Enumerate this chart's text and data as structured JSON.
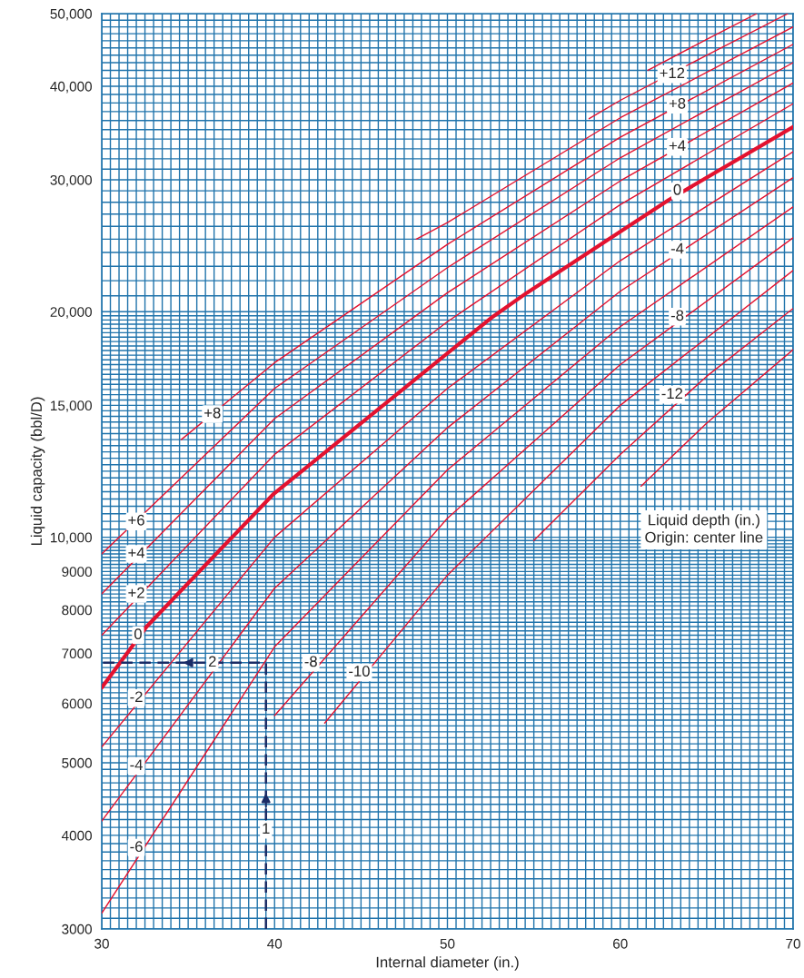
{
  "chart_data": {
    "type": "line",
    "xlabel": "Internal diameter (in.)",
    "ylabel": "Liquid capacity (bbl/D)",
    "log": "y",
    "grid": true,
    "xlim": [
      30,
      70
    ],
    "ylim": [
      3000,
      50000
    ],
    "xticks": [
      30,
      40,
      50,
      60,
      70
    ],
    "yticks": [
      3000,
      4000,
      5000,
      6000,
      7000,
      8000,
      9000,
      {
        "value": 10000,
        "label": "10,000"
      },
      {
        "value": 15000,
        "label": "15,000"
      },
      {
        "value": 20000,
        "label": "20,000"
      },
      {
        "value": 30000,
        "label": "30,000"
      },
      {
        "value": 40000,
        "label": "40,000"
      },
      {
        "value": 50000,
        "label": "50,000"
      }
    ],
    "series": [
      {
        "color": "#e3122f",
        "x": [
          30,
          32.6,
          39.9,
          52.5,
          54.6,
          62.8,
          70
        ],
        "values": [
          6300,
          7600,
          11400,
          19600,
          21200,
          28200,
          35300
        ]
      },
      {
        "color": "#e3122f",
        "x": [
          30,
          40,
          50,
          60,
          70
        ],
        "values": [
          7400,
          12900,
          19400,
          27800,
          37900
        ]
      },
      {
        "color": "#e3122f",
        "x": [
          30,
          40,
          50,
          60,
          70
        ],
        "values": [
          8400,
          14400,
          21200,
          29900,
          40400
        ]
      },
      {
        "color": "#e3122f",
        "x": [
          30,
          40,
          50,
          60,
          70
        ],
        "values": [
          9500,
          15800,
          22900,
          32100,
          43000
        ]
      },
      {
        "color": "#e3122f",
        "x": [
          34.6,
          40,
          50,
          60,
          70
        ],
        "values": [
          13500,
          17100,
          24600,
          34200,
          45500
        ]
      },
      {
        "color": "#e3122f",
        "x": [
          48.2,
          50,
          60,
          70
        ],
        "values": [
          25000,
          26300,
          36300,
          48000
        ]
      },
      {
        "color": "#e3122f",
        "x": [
          58.2,
          60,
          65,
          69.7
        ],
        "values": [
          36200,
          38300,
          44000,
          50000
        ]
      },
      {
        "color": "#e3122f",
        "x": [
          61.6,
          65,
          67.9
        ],
        "values": [
          42000,
          46200,
          50000
        ]
      },
      {
        "color": "#e3122f",
        "x": [
          30,
          40,
          50,
          60,
          70
        ],
        "values": [
          5250,
          10000,
          15800,
          23400,
          32700
        ]
      },
      {
        "color": "#e3122f",
        "x": [
          30,
          40,
          50,
          60,
          70
        ],
        "values": [
          4180,
          8550,
          14000,
          21300,
          30200
        ]
      },
      {
        "color": "#e3122f",
        "x": [
          30,
          40,
          50,
          60,
          70
        ],
        "values": [
          3150,
          7140,
          12300,
          19100,
          27600
        ]
      },
      {
        "color": "#e3122f",
        "x": [
          40,
          50,
          60,
          70
        ],
        "values": [
          5780,
          10600,
          17000,
          25100
        ]
      },
      {
        "color": "#e3122f",
        "x": [
          42.9,
          50,
          60,
          70
        ],
        "values": [
          5650,
          8900,
          15000,
          22700
        ]
      },
      {
        "color": "#e3122f",
        "x": [
          55,
          60,
          65,
          70
        ],
        "values": [
          9900,
          12900,
          16400,
          20200
        ]
      },
      {
        "color": "#e3122f",
        "x": [
          61.2,
          65,
          70
        ],
        "values": [
          11700,
          14200,
          17800
        ]
      },
      {
        "color": "#1b2c66",
        "line_style": "dashed",
        "x": [
          39.5,
          39.5,
          30
        ],
        "values": [
          3000,
          6800,
          6800
        ]
      }
    ],
    "annotations": [
      {
        "text": "+8",
        "x": 36.4,
        "y": 14600
      },
      {
        "text": "+6",
        "x": 32.0,
        "y": 10500
      },
      {
        "text": "+4",
        "x": 32.0,
        "y": 9500
      },
      {
        "text": "+2",
        "x": 32.0,
        "y": 8400
      },
      {
        "text": "0",
        "x": 32.1,
        "y": 7400
      },
      {
        "text": "-2",
        "x": 32.0,
        "y": 6100
      },
      {
        "text": "-4",
        "x": 32.0,
        "y": 4950
      },
      {
        "text": "-6",
        "x": 32.0,
        "y": 3850
      },
      {
        "text": "-8",
        "x": 42.1,
        "y": 6800
      },
      {
        "text": "-10",
        "x": 44.9,
        "y": 6600
      },
      {
        "text": "+12",
        "x": 63.0,
        "y": 41500
      },
      {
        "text": "+8",
        "x": 63.3,
        "y": 37800
      },
      {
        "text": "+4",
        "x": 63.3,
        "y": 33200
      },
      {
        "text": "0",
        "x": 63.3,
        "y": 29000
      },
      {
        "text": "-4",
        "x": 63.3,
        "y": 24200
      },
      {
        "text": "-8",
        "x": 63.3,
        "y": 19700
      },
      {
        "text": "-12",
        "x": 63.0,
        "y": 15500
      },
      {
        "text": "1",
        "x": 39.5,
        "y": 4070
      },
      {
        "text": "2",
        "x": 36.4,
        "y": 6800
      },
      "Liquid depth (in.)\nOrigin: center line"
    ]
  }
}
